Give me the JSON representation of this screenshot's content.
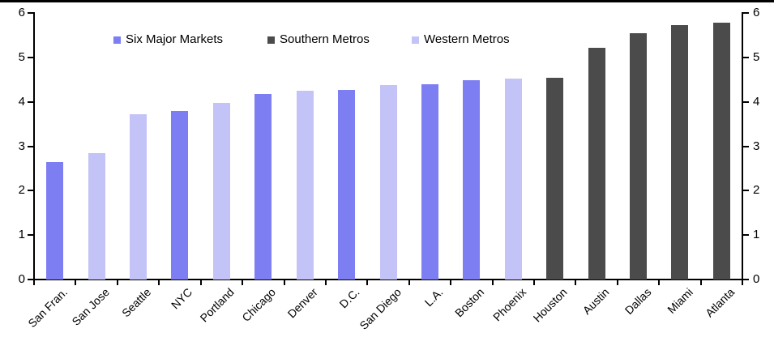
{
  "chart_data": {
    "type": "bar",
    "title": "",
    "xlabel": "",
    "ylabel": "",
    "categories": [
      "San Fran.",
      "San Jose",
      "Seattle",
      "NYC",
      "Portland",
      "Chicago",
      "Denver",
      "D.C.",
      "San Diego",
      "L.A.",
      "Boston",
      "Phoenix",
      "Houston",
      "Austin",
      "Dallas",
      "Miami",
      "Atlanta"
    ],
    "values": [
      2.64,
      2.85,
      3.73,
      3.79,
      3.98,
      4.18,
      4.25,
      4.27,
      4.38,
      4.4,
      4.48,
      4.53,
      4.54,
      5.22,
      5.55,
      5.73,
      5.78
    ],
    "groups": [
      "six_major",
      "western",
      "western",
      "six_major",
      "western",
      "six_major",
      "western",
      "six_major",
      "western",
      "six_major",
      "six_major",
      "western",
      "southern",
      "southern",
      "southern",
      "southern",
      "southern"
    ],
    "series_colors": {
      "six_major": "#7e7ef3",
      "southern": "#4b4b4b",
      "western": "#c3c3f8"
    },
    "legend": [
      {
        "key": "six_major",
        "label": "Six Major Markets"
      },
      {
        "key": "southern",
        "label": "Southern Metros"
      },
      {
        "key": "western",
        "label": "Western Metros"
      }
    ],
    "legend_position": "top-inside-horizontal",
    "y_axis": {
      "min": 0,
      "max": 6,
      "tick_step": 1,
      "ticks": [
        0,
        1,
        2,
        3,
        4,
        5,
        6
      ],
      "sides": [
        "left",
        "right"
      ]
    },
    "x_axis": {
      "label_rotation_deg": 45,
      "boundary_ticks": true
    },
    "grid": false,
    "axis_color": "#000000",
    "background_color": "#ffffff"
  }
}
